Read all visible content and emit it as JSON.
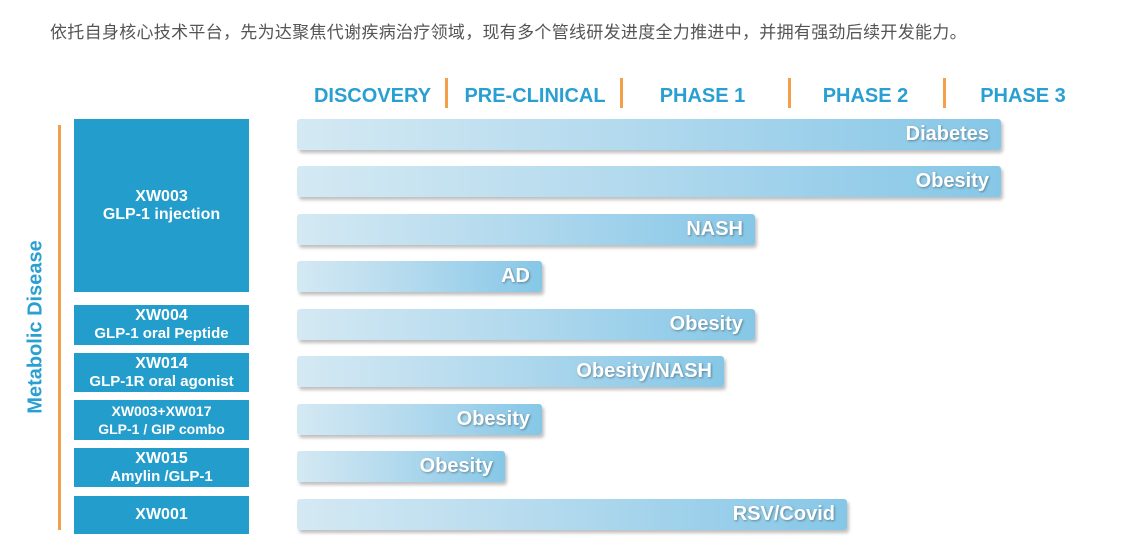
{
  "intro_text": "依托自身核心技术平台，先为达聚焦代谢疾病治疗领域，现有多个管线研发进度全力推进中，并拥有强劲后续开发能力。",
  "phases": [
    "DISCOVERY",
    "PRE-CLINICAL",
    "PHASE 1",
    "PHASE 2",
    "PHASE 3"
  ],
  "category_label": "Metabolic Disease",
  "colors": {
    "accent_blue": "#2a9fd1",
    "box_blue": "#239dcc",
    "separator_orange": "#f4a04b"
  },
  "programs": [
    {
      "name": "XW003",
      "subtitle": "GLP-1 injection"
    },
    {
      "name": "XW004",
      "subtitle": "GLP-1 oral Peptide"
    },
    {
      "name": "XW014",
      "subtitle": "GLP-1R oral agonist"
    },
    {
      "name": "XW003+XW017",
      "subtitle": "GLP-1 / GIP combo"
    },
    {
      "name": "XW015",
      "subtitle": "Amylin /GLP-1"
    },
    {
      "name": "XW001",
      "subtitle": ""
    }
  ],
  "indications": [
    {
      "program": "XW003",
      "label": "Diabetes",
      "progress_phases": 4.2
    },
    {
      "program": "XW003",
      "label": "Obesity",
      "progress_phases": 4.2
    },
    {
      "program": "XW003",
      "label": "NASH",
      "progress_phases": 2.8
    },
    {
      "program": "XW003",
      "label": "AD",
      "progress_phases": 1.5
    },
    {
      "program": "XW004",
      "label": "Obesity",
      "progress_phases": 2.8
    },
    {
      "program": "XW014",
      "label": "Obesity/NASH",
      "progress_phases": 2.6
    },
    {
      "program": "XW003+XW017",
      "label": "Obesity",
      "progress_phases": 1.5
    },
    {
      "program": "XW015",
      "label": "Obesity",
      "progress_phases": 1.3
    },
    {
      "program": "XW001",
      "label": "RSV/Covid",
      "progress_phases": 3.3
    }
  ]
}
